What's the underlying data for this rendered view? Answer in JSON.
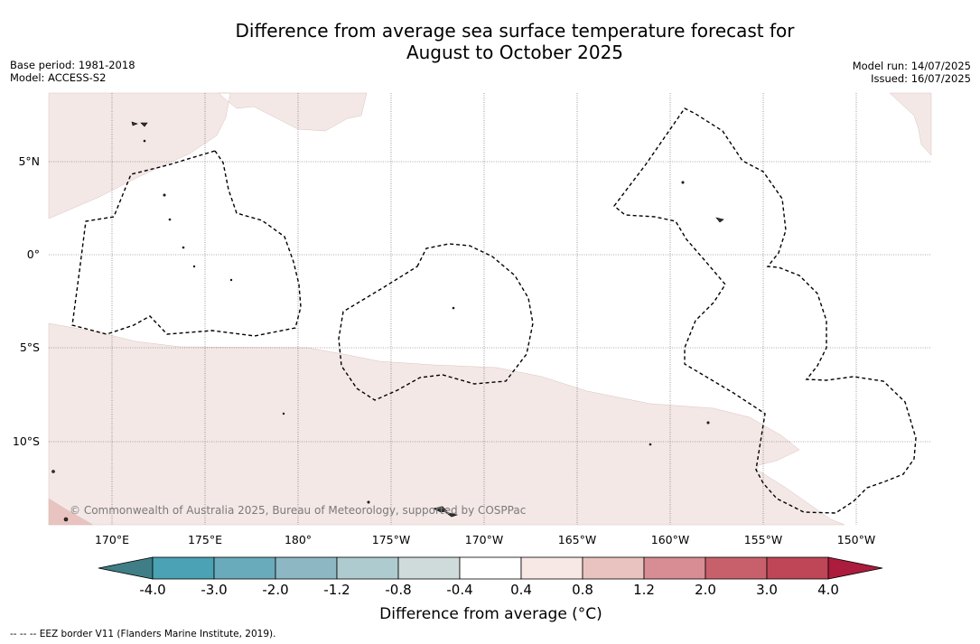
{
  "title": {
    "line1": "Difference from average sea surface temperature forecast for",
    "line2": "August to October 2025"
  },
  "meta_left": {
    "base_period": "Base period: 1981-2018",
    "model": "Model: ACCESS-S2"
  },
  "meta_right": {
    "model_run": "Model run: 14/07/2025",
    "issued": "Issued: 16/07/2025"
  },
  "map": {
    "lat_labels": [
      "5°N",
      "0°",
      "5°S",
      "10°S"
    ],
    "lon_labels": [
      "170°E",
      "175°E",
      "180°",
      "175°W",
      "170°W",
      "165°W",
      "160°W",
      "155°W",
      "150°W"
    ],
    "copyright": "© Commonwealth of Australia 2025, Bureau of Meteorology, supported by COSPPac"
  },
  "colorbar": {
    "title": "Difference from average (°C)",
    "tick_labels": [
      "-4.0",
      "-3.0",
      "-2.0",
      "-1.2",
      "-0.8",
      "-0.4",
      "0.4",
      "0.8",
      "1.2",
      "2.0",
      "3.0",
      "4.0"
    ],
    "colors": [
      "#3f7e86",
      "#4aa2b4",
      "#6aabbb",
      "#8db8c3",
      "#aecbcf",
      "#cfdadb",
      "#ffffff",
      "#f7e7e5",
      "#e8c3bf",
      "#d88c94",
      "#c8606c",
      "#be4656",
      "#ac1c3c"
    ]
  },
  "footer": "--  --  -- EEZ border V11 (Flanders Marine Institute, 2019)."
}
